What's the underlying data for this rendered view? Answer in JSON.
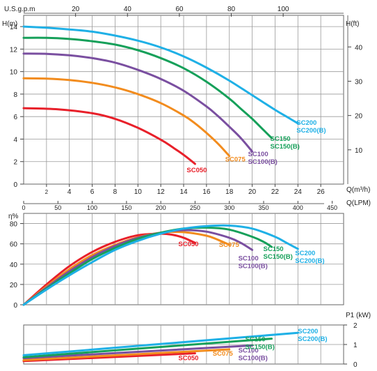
{
  "chart_data": [
    {
      "type": "line",
      "ylabel": "H(m)",
      "ylabel_right": "H(ft)",
      "top_axis_label": "U.S.g.p.m",
      "x_axis_labels": [
        "Q(m³/h)",
        "Q(LPM)"
      ],
      "xlim": [
        0,
        28
      ],
      "ylim": [
        0,
        15
      ],
      "yticks": [
        0,
        2,
        4,
        6,
        8,
        10,
        12,
        14
      ],
      "ftticks": [
        10,
        20,
        30,
        40
      ],
      "gpmticks": [
        20,
        40,
        60,
        80,
        100
      ],
      "qticks": [
        2,
        4,
        6,
        8,
        10,
        12,
        14,
        16,
        18,
        20,
        22,
        24,
        26
      ],
      "lpmticks": [
        0,
        50,
        100,
        150,
        200,
        250,
        300,
        350,
        400,
        450
      ],
      "grid": true,
      "series": [
        {
          "name": "SC050",
          "color": "#e8202a",
          "x": [
            0,
            3,
            6,
            8,
            10,
            12,
            13,
            14,
            15
          ],
          "y": [
            6.75,
            6.65,
            6.3,
            5.8,
            5.0,
            3.95,
            3.3,
            2.6,
            1.8
          ]
        },
        {
          "name": "SC075",
          "color": "#f28c1e",
          "x": [
            0,
            2,
            4,
            6,
            8,
            10,
            12,
            14,
            15,
            16,
            17,
            18
          ],
          "y": [
            9.4,
            9.38,
            9.25,
            9.0,
            8.6,
            8.0,
            7.2,
            6.1,
            5.4,
            4.55,
            3.6,
            2.5
          ]
        },
        {
          "name": "SC100",
          "color": "#7a4fa0",
          "x": [
            0,
            2,
            4,
            6,
            8,
            10,
            12,
            14,
            16,
            17,
            18,
            19,
            20
          ],
          "y": [
            11.6,
            11.58,
            11.45,
            11.2,
            10.8,
            10.15,
            9.35,
            8.3,
            6.9,
            6.05,
            5.1,
            4.1,
            2.9
          ]
        },
        {
          "name": "SC150",
          "color": "#16a05a",
          "x": [
            0,
            2,
            4,
            6,
            8,
            10,
            12,
            14,
            16,
            18,
            19,
            20,
            21,
            21.7
          ],
          "y": [
            13.0,
            13.0,
            12.9,
            12.7,
            12.4,
            11.9,
            11.2,
            10.3,
            9.1,
            7.6,
            6.7,
            5.8,
            4.8,
            4.1
          ]
        },
        {
          "name": "SC200",
          "color": "#1fb0e6",
          "x": [
            0,
            2,
            4,
            6,
            8,
            10,
            12,
            14,
            16,
            18,
            20,
            22,
            23,
            24
          ],
          "y": [
            14.0,
            13.9,
            13.75,
            13.55,
            13.2,
            12.75,
            12.15,
            11.35,
            10.35,
            9.2,
            7.9,
            6.6,
            6.0,
            5.4
          ]
        }
      ],
      "curve_labels": [
        {
          "series": "SC050",
          "lines": [
            "SC050"
          ]
        },
        {
          "series": "SC075",
          "lines": [
            "SC075"
          ]
        },
        {
          "series": "SC100",
          "lines": [
            "SC100",
            "SC100(B)"
          ]
        },
        {
          "series": "SC150",
          "lines": [
            "SC150",
            "SC150(B)"
          ]
        },
        {
          "series": "SC200",
          "lines": [
            "SC200",
            "SC200(B)"
          ]
        }
      ]
    },
    {
      "type": "line",
      "ylabel": "η%",
      "xlim": [
        0,
        28
      ],
      "ylim": [
        0,
        90
      ],
      "yticks": [
        0,
        20,
        40,
        60,
        80
      ],
      "grid": true,
      "series": [
        {
          "name": "SC050",
          "color": "#e8202a",
          "x": [
            0,
            2,
            4,
            6,
            8,
            10,
            12,
            13,
            14,
            15
          ],
          "y": [
            0,
            20,
            38,
            52,
            62,
            68.5,
            70,
            69,
            66,
            61
          ]
        },
        {
          "name": "SC075",
          "color": "#f28c1e",
          "x": [
            0,
            2,
            4,
            6,
            8,
            10,
            12,
            14,
            16,
            17,
            18
          ],
          "y": [
            0,
            18,
            35,
            49,
            59,
            66.5,
            71,
            71.5,
            68,
            64,
            59
          ]
        },
        {
          "name": "SC100",
          "color": "#7a4fa0",
          "x": [
            0,
            2,
            4,
            6,
            8,
            10,
            12,
            14,
            16,
            18,
            19,
            20
          ],
          "y": [
            0,
            17,
            33,
            47,
            58,
            66,
            71,
            73.5,
            72,
            66,
            61,
            54
          ]
        },
        {
          "name": "SC150",
          "color": "#16a05a",
          "x": [
            0,
            2,
            4,
            6,
            8,
            10,
            12,
            14,
            16,
            18,
            20,
            21,
            21.7
          ],
          "y": [
            0,
            16,
            31,
            45,
            56,
            65,
            71,
            75,
            76,
            74,
            67,
            62,
            57
          ]
        },
        {
          "name": "SC200",
          "color": "#1fb0e6",
          "x": [
            0,
            2,
            4,
            6,
            8,
            10,
            12,
            14,
            16,
            18,
            20,
            22,
            23,
            24
          ],
          "y": [
            0,
            15,
            29,
            42,
            54,
            63,
            70,
            75,
            77.5,
            78,
            75,
            67,
            61,
            55
          ]
        }
      ],
      "curve_labels": [
        {
          "series": "SC050",
          "lines": [
            "SC050"
          ]
        },
        {
          "series": "SC075",
          "lines": [
            "SC075"
          ]
        },
        {
          "series": "SC100",
          "lines": [
            "SC100",
            "SC100(B)"
          ]
        },
        {
          "series": "SC150",
          "lines": [
            "SC150",
            "SC150(B)"
          ]
        },
        {
          "series": "SC200",
          "lines": [
            "SC200",
            "SC200(B)"
          ]
        }
      ]
    },
    {
      "type": "line",
      "ylabel_right": "P1 (kW)",
      "xlim": [
        0,
        28
      ],
      "ylim": [
        0,
        2
      ],
      "yticks": [
        0,
        1,
        2
      ],
      "grid": true,
      "series": [
        {
          "name": "SC050",
          "color": "#e8202a",
          "x": [
            0,
            15
          ],
          "y": [
            0.15,
            0.55
          ]
        },
        {
          "name": "SC075",
          "color": "#f28c1e",
          "x": [
            0,
            18
          ],
          "y": [
            0.2,
            0.75
          ]
        },
        {
          "name": "SC100",
          "color": "#7a4fa0",
          "x": [
            0,
            20
          ],
          "y": [
            0.3,
            0.95
          ]
        },
        {
          "name": "SC150",
          "color": "#16a05a",
          "x": [
            0,
            21.7
          ],
          "y": [
            0.35,
            1.3
          ]
        },
        {
          "name": "SC200",
          "color": "#1fb0e6",
          "x": [
            0,
            24
          ],
          "y": [
            0.45,
            1.6
          ]
        }
      ],
      "curve_labels": [
        {
          "series": "SC050",
          "lines": [
            "SC050"
          ]
        },
        {
          "series": "SC075",
          "lines": [
            "SC075"
          ]
        },
        {
          "series": "SC100",
          "lines": [
            "SC100",
            "SC100(B)"
          ]
        },
        {
          "series": "SC150",
          "lines": [
            "SC150",
            "SC150(B)"
          ]
        },
        {
          "series": "SC200",
          "lines": [
            "SC200",
            "SC200(B)"
          ]
        }
      ]
    }
  ]
}
